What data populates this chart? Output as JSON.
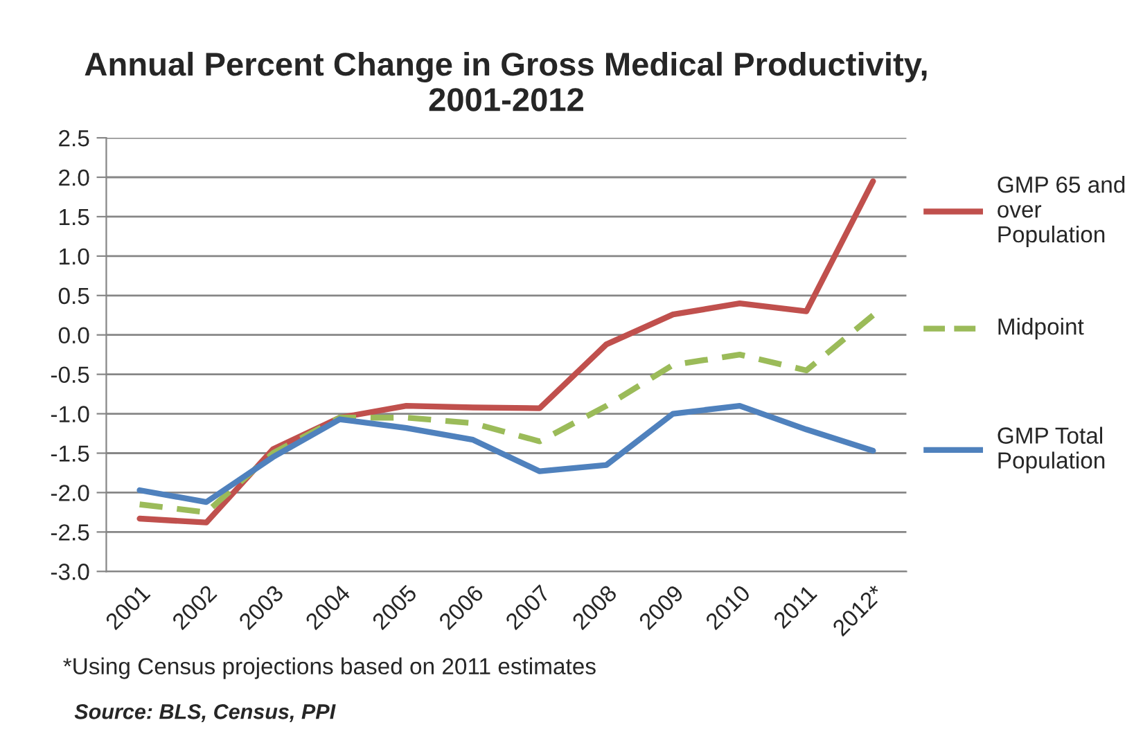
{
  "chart_data": {
    "type": "line",
    "title": "Annual Percent Change in Gross Medical Productivity,\n2001-2012",
    "categories": [
      "2001",
      "2002",
      "2003",
      "2004",
      "2005",
      "2006",
      "2007",
      "2008",
      "2009",
      "2010",
      "2011",
      "2012*"
    ],
    "series": [
      {
        "name": "GMP 65 and over Population",
        "color": "#c0504d",
        "line_style": "solid",
        "values": [
          -2.33,
          -2.38,
          -1.45,
          -1.05,
          -0.9,
          -0.92,
          -0.93,
          -0.12,
          0.26,
          0.4,
          0.3,
          1.95
        ]
      },
      {
        "name": "Midpoint",
        "color": "#9bbb59",
        "line_style": "dashed",
        "values": [
          -2.15,
          -2.25,
          -1.5,
          -1.05,
          -1.05,
          -1.12,
          -1.35,
          -0.9,
          -0.38,
          -0.25,
          -0.45,
          0.25
        ]
      },
      {
        "name": "GMP Total Population",
        "color": "#4f81bd",
        "line_style": "solid",
        "values": [
          -1.97,
          -2.12,
          -1.55,
          -1.07,
          -1.18,
          -1.33,
          -1.73,
          -1.65,
          -1.0,
          -0.9,
          -1.2,
          -1.47
        ]
      }
    ],
    "ylim": [
      -3.0,
      2.5
    ],
    "yticks": [
      {
        "value": -3.0,
        "label": "-3.0"
      },
      {
        "value": -2.5,
        "label": "-2.5"
      },
      {
        "value": -2.0,
        "label": "-2.0"
      },
      {
        "value": -1.5,
        "label": "-1.5"
      },
      {
        "value": -1.0,
        "label": "-1.0"
      },
      {
        "value": -0.5,
        "label": "-0.5"
      },
      {
        "value": 0.0,
        "label": "0.0"
      },
      {
        "value": 0.5,
        "label": "0.5"
      },
      {
        "value": 1.0,
        "label": "1.0"
      },
      {
        "value": 1.5,
        "label": "1.5"
      },
      {
        "value": 2.0,
        "label": "2.0"
      },
      {
        "value": 2.5,
        "label": "2.5"
      }
    ],
    "grid": "y",
    "legend": "right",
    "marker": "none",
    "annotations": [
      "*Using Census projections based on 2011 estimates",
      "Source: BLS, Census, PPI"
    ]
  }
}
